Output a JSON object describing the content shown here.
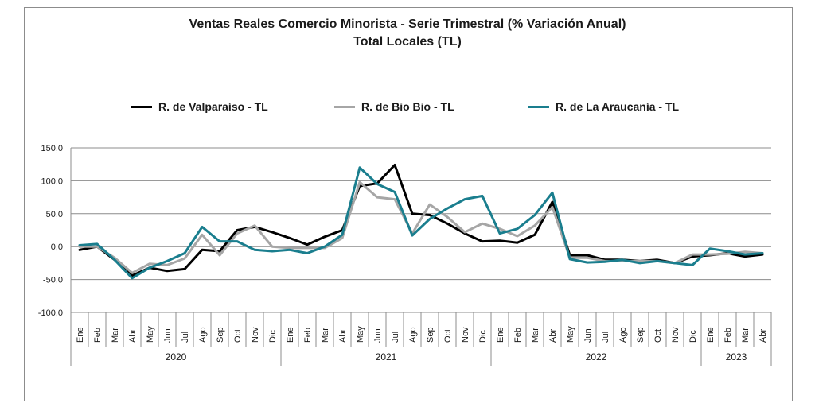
{
  "chart_data": {
    "type": "line",
    "title": "Ventas Reales Comercio Minorista - Serie Trimestral (% Variación Anual)",
    "subtitle": "Total Locales (TL)",
    "ylim": [
      -100,
      150
    ],
    "yticks": [
      "150,0",
      "100,0",
      "50,0",
      "0,0",
      "-50,0",
      "-100,0"
    ],
    "ytick_values": [
      150,
      100,
      50,
      0,
      -50,
      -100
    ],
    "grid": "horizontal",
    "legend_position": "top",
    "months": [
      "Ene",
      "Feb",
      "Mar",
      "Abr",
      "May",
      "Jun",
      "Jul",
      "Ago",
      "Sep",
      "Oct",
      "Nov",
      "Dic",
      "Ene",
      "Feb",
      "Mar",
      "Abr",
      "May",
      "Jun",
      "Jul",
      "Ago",
      "Sep",
      "Oct",
      "Nov",
      "Dic",
      "Ene",
      "Feb",
      "Mar",
      "Abr",
      "May",
      "Jun",
      "Jul",
      "Ago",
      "Sep",
      "Oct",
      "Nov",
      "Dic",
      "Ene",
      "Feb",
      "Mar",
      "Abr"
    ],
    "years": [
      {
        "label": "2020",
        "months": 12
      },
      {
        "label": "2021",
        "months": 12
      },
      {
        "label": "2022",
        "months": 12
      },
      {
        "label": "2023",
        "months": 4
      }
    ],
    "series": [
      {
        "name": "R. de Valparaíso - TL",
        "color": "#000000",
        "values": [
          -5,
          0,
          -20,
          -44,
          -32,
          -37,
          -34,
          -5,
          -7,
          25,
          30,
          22,
          13,
          3,
          15,
          25,
          92,
          96,
          124,
          50,
          48,
          35,
          20,
          8,
          9,
          6,
          18,
          68,
          -13,
          -13,
          -20,
          -20,
          -22,
          -20,
          -25,
          -15,
          -13,
          -10,
          -15,
          -12
        ]
      },
      {
        "name": "R. de Bio Bio - TL",
        "color": "#a6a6a6",
        "values": [
          0,
          0,
          -17,
          -40,
          -26,
          -28,
          -18,
          18,
          -13,
          20,
          32,
          0,
          -2,
          -2,
          -2,
          13,
          98,
          75,
          72,
          20,
          64,
          45,
          22,
          35,
          27,
          16,
          32,
          60,
          -17,
          -17,
          -22,
          -22,
          -22,
          -22,
          -25,
          -12,
          -12,
          -11,
          -8,
          -10
        ]
      },
      {
        "name": "R. de La Araucanía - TL",
        "color": "#1a7e8e",
        "values": [
          2,
          4,
          -20,
          -48,
          -32,
          -22,
          -10,
          30,
          8,
          8,
          -5,
          -7,
          -5,
          -10,
          0,
          18,
          120,
          95,
          83,
          17,
          42,
          58,
          72,
          77,
          20,
          27,
          48,
          82,
          -19,
          -24,
          -23,
          -20,
          -25,
          -22,
          -25,
          -28,
          -3,
          -7,
          -12,
          -10
        ]
      }
    ]
  }
}
